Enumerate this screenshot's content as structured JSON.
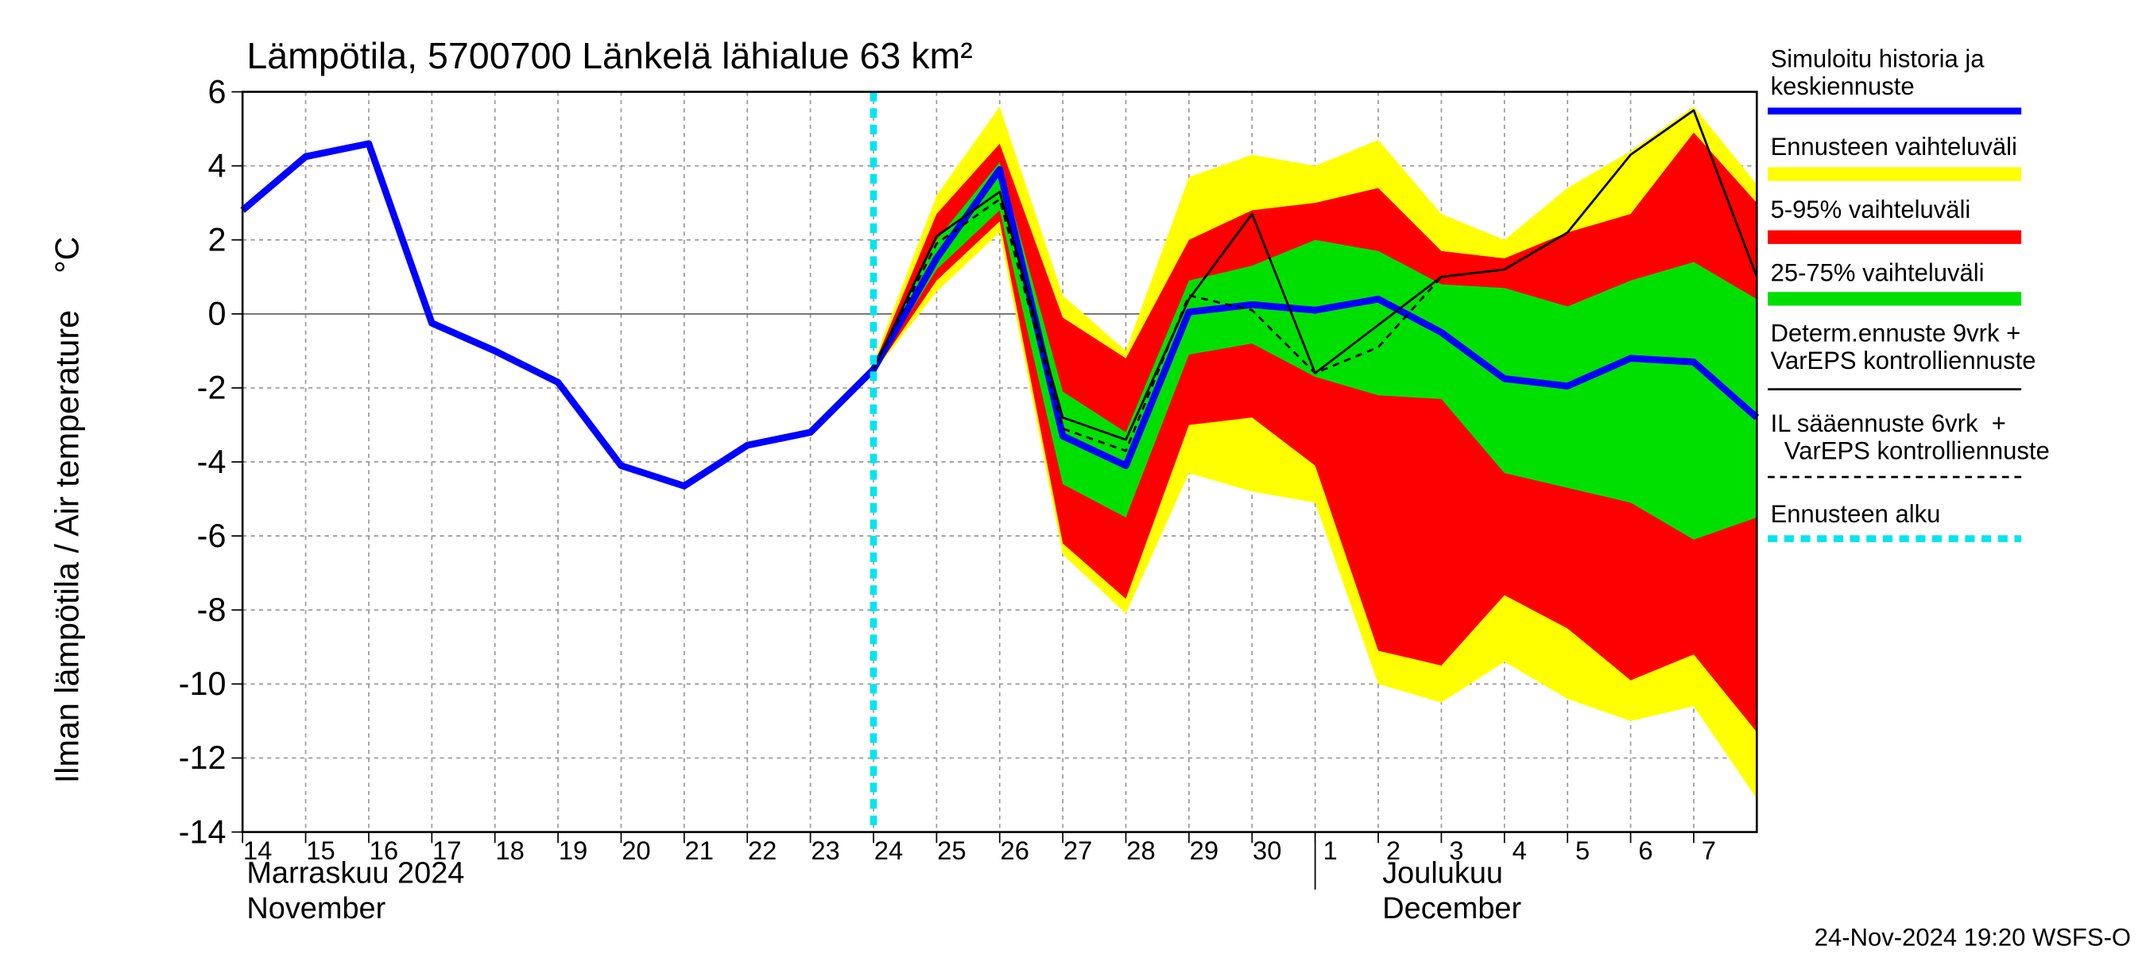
{
  "chart_data": {
    "type": "line",
    "title": "Lämpötila, 5700700 Länkelä lähialue 63 km²",
    "ylabel": "Ilman lämpötila / Air temperature    °C",
    "month_labels": [
      {
        "value": 0,
        "label": "Marraskuu 2024"
      },
      {
        "value": 0,
        "label": "November"
      },
      {
        "value": 18,
        "label": "Joulukuu"
      },
      {
        "value": 18,
        "label": "December"
      }
    ],
    "month_separators": [
      17
    ],
    "footer": "24-Nov-2024 19:20 WSFS-O",
    "xlim": [
      0,
      24
    ],
    "ylim": [
      -14,
      6
    ],
    "yticks": [
      -14,
      -12,
      -10,
      -8,
      -6,
      -4,
      -2,
      0,
      2,
      4,
      6
    ],
    "xticks": [
      {
        "value": 0,
        "label": "14"
      },
      {
        "value": 1,
        "label": "15"
      },
      {
        "value": 2,
        "label": "16"
      },
      {
        "value": 3,
        "label": "17"
      },
      {
        "value": 4,
        "label": "18"
      },
      {
        "value": 5,
        "label": "19"
      },
      {
        "value": 6,
        "label": "20"
      },
      {
        "value": 7,
        "label": "21"
      },
      {
        "value": 8,
        "label": "22"
      },
      {
        "value": 9,
        "label": "23"
      },
      {
        "value": 10,
        "label": "24"
      },
      {
        "value": 11,
        "label": "25"
      },
      {
        "value": 12,
        "label": "26"
      },
      {
        "value": 13,
        "label": "27"
      },
      {
        "value": 14,
        "label": "28"
      },
      {
        "value": 15,
        "label": "29"
      },
      {
        "value": 16,
        "label": "30"
      },
      {
        "value": 17,
        "label": "1"
      },
      {
        "value": 18,
        "label": "2"
      },
      {
        "value": 19,
        "label": "3"
      },
      {
        "value": 20,
        "label": "4"
      },
      {
        "value": 21,
        "label": "5"
      },
      {
        "value": 22,
        "label": "6"
      },
      {
        "value": 23,
        "label": "7"
      }
    ],
    "grid": true,
    "series": [
      {
        "name": "Simuloitu historia ja\nkeskiennuste",
        "color": "#0000ff",
        "style": "solid",
        "width": 5,
        "x": [
          0,
          1,
          2,
          3,
          4,
          5,
          6,
          7,
          8,
          9,
          10,
          11,
          12,
          13,
          14,
          15,
          16,
          17,
          18,
          19,
          20,
          21,
          22,
          23,
          24
        ],
        "values": [
          2.8,
          4.25,
          4.6,
          -0.25,
          -1.0,
          -1.85,
          -4.1,
          -4.65,
          -3.55,
          -3.2,
          -1.5,
          1.5,
          3.9,
          -3.3,
          -4.1,
          0.05,
          0.25,
          0.1,
          0.4,
          -0.5,
          -1.75,
          -1.95,
          -1.2,
          -1.3,
          -2.8
        ]
      },
      {
        "name": "Ennusteen vaihteluväli",
        "color": "#ffff00",
        "style": "band",
        "x": [
          10,
          11,
          12,
          13,
          14,
          15,
          16,
          17,
          18,
          19,
          20,
          21,
          22,
          23,
          24
        ],
        "upper": [
          -1.3,
          3.2,
          5.6,
          0.5,
          -1.0,
          3.7,
          4.3,
          4.0,
          4.7,
          2.7,
          2.0,
          3.4,
          4.4,
          5.6,
          3.5
        ],
        "lower": [
          -1.6,
          0.6,
          2.2,
          -6.5,
          -8.1,
          -4.3,
          -4.8,
          -5.1,
          -10.0,
          -10.5,
          -9.4,
          -10.4,
          -11.0,
          -10.6,
          -13.1
        ]
      },
      {
        "name": "5-95% vaihteluväli",
        "color": "#ff0000",
        "style": "band",
        "x": [
          10,
          11,
          12,
          13,
          14,
          15,
          16,
          17,
          18,
          19,
          20,
          21,
          22,
          23,
          24
        ],
        "upper": [
          -1.4,
          2.7,
          4.6,
          -0.1,
          -1.2,
          2.0,
          2.8,
          3.0,
          3.4,
          1.7,
          1.5,
          2.2,
          2.7,
          4.9,
          3.0
        ],
        "lower": [
          -1.6,
          0.9,
          2.5,
          -6.2,
          -7.7,
          -3.0,
          -2.8,
          -4.1,
          -9.1,
          -9.5,
          -7.6,
          -8.5,
          -9.9,
          -9.2,
          -11.3
        ]
      },
      {
        "name": "25-75% vaihteluväli",
        "color": "#00e000",
        "style": "band",
        "x": [
          10,
          11,
          12,
          13,
          14,
          15,
          16,
          17,
          18,
          19,
          20,
          21,
          22,
          23,
          24
        ],
        "upper": [
          -1.45,
          2.0,
          4.1,
          -2.1,
          -3.2,
          0.9,
          1.3,
          2.0,
          1.7,
          0.8,
          0.7,
          0.2,
          0.9,
          1.4,
          0.4
        ],
        "lower": [
          -1.55,
          1.2,
          2.8,
          -4.6,
          -5.5,
          -1.1,
          -0.8,
          -1.7,
          -2.2,
          -2.3,
          -4.3,
          -4.7,
          -5.1,
          -6.1,
          -5.5
        ]
      },
      {
        "name": "Determ.ennuste 9vrk +\nVarEPS kontrolliennuste",
        "color": "#000000",
        "style": "solid",
        "width": 1.6,
        "x": [
          10,
          11,
          12,
          13,
          14,
          15,
          16,
          17,
          18,
          19,
          20,
          21,
          22,
          23,
          24
        ],
        "values": [
          -1.5,
          2.1,
          3.3,
          -2.8,
          -3.4,
          0.4,
          2.7,
          -1.6,
          -0.3,
          1.0,
          1.2,
          2.2,
          4.3,
          5.5,
          1.0
        ]
      },
      {
        "name": "IL sääennuste 6vrk  +\n  VarEPS kontrolliennuste",
        "color": "#000000",
        "style": "dashed",
        "width": 1.6,
        "x": [
          10,
          11,
          12,
          13,
          14,
          15,
          16,
          17,
          18,
          19
        ],
        "values": [
          -1.5,
          1.9,
          3.1,
          -3.1,
          -3.7,
          0.5,
          0.1,
          -1.6,
          -0.9,
          1.0
        ]
      },
      {
        "name": "Ennusteen alku",
        "color": "#00e5ee",
        "style": "vline",
        "x": [
          10
        ]
      }
    ]
  }
}
